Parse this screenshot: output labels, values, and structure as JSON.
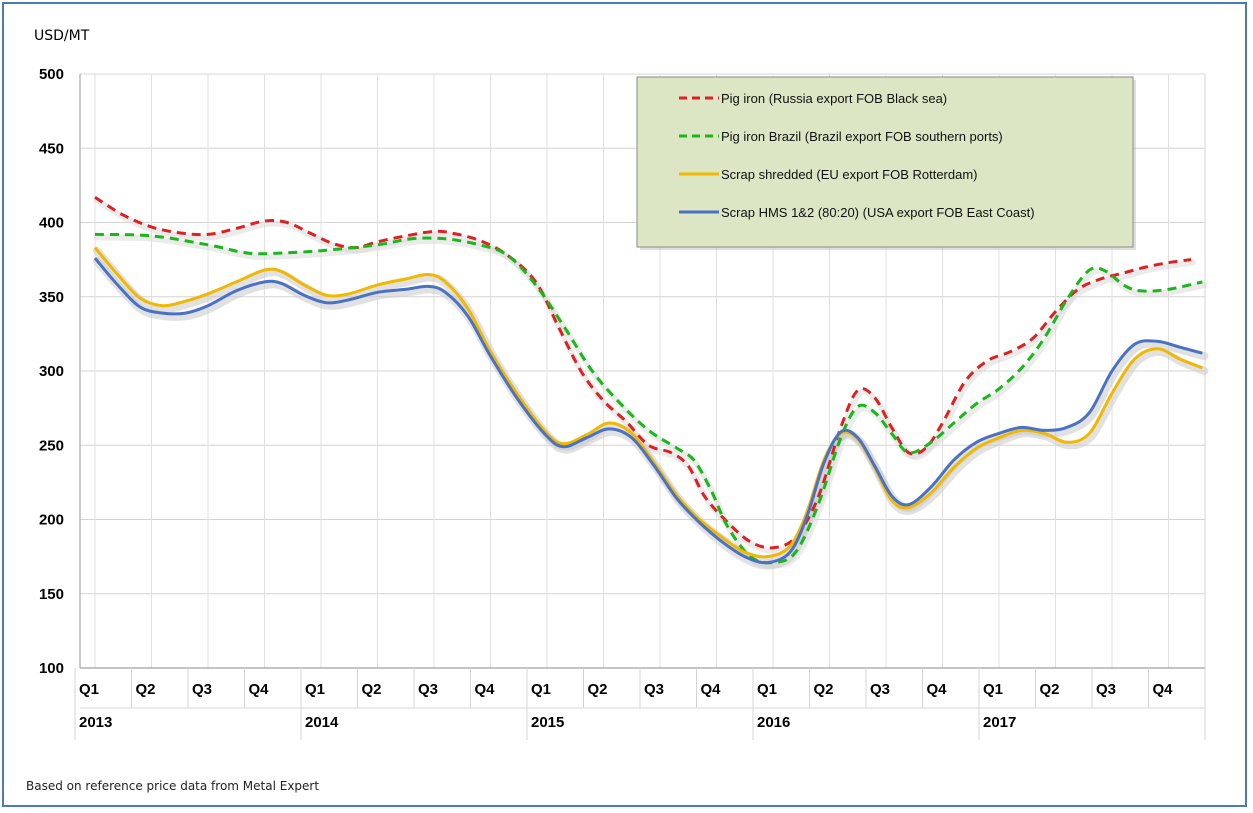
{
  "chart_data": {
    "type": "line",
    "ylabel": "USD/MT",
    "ylim": [
      100,
      500
    ],
    "yticks": [
      100,
      150,
      200,
      250,
      300,
      350,
      400,
      450,
      500
    ],
    "x_quarters": [
      "Q1",
      "Q2",
      "Q3",
      "Q4",
      "Q1",
      "Q2",
      "Q3",
      "Q4",
      "Q1",
      "Q2",
      "Q3",
      "Q4",
      "Q1",
      "Q2",
      "Q3",
      "Q4",
      "Q1",
      "Q2",
      "Q3",
      "Q4"
    ],
    "x_years": [
      {
        "label": "2013",
        "quarter_index": 0
      },
      {
        "label": "2014",
        "quarter_index": 4
      },
      {
        "label": "2015",
        "quarter_index": 8
      },
      {
        "label": "2016",
        "quarter_index": 12
      },
      {
        "label": "2017",
        "quarter_index": 16
      }
    ],
    "x_range": [
      0,
      19.6
    ],
    "grid": true,
    "legend_position": "top-right",
    "note": "Based on reference price data from Metal Expert",
    "series": [
      {
        "name": "Pig iron (Russia export FOB Black sea)",
        "color": "#e02020",
        "style": "dashed",
        "points": [
          [
            0,
            417
          ],
          [
            0.5,
            405
          ],
          [
            1,
            397
          ],
          [
            1.5,
            393
          ],
          [
            2,
            392
          ],
          [
            2.5,
            396
          ],
          [
            3,
            401
          ],
          [
            3.4,
            400
          ],
          [
            3.8,
            393
          ],
          [
            4.2,
            386
          ],
          [
            4.6,
            383
          ],
          [
            5,
            387
          ],
          [
            5.5,
            391
          ],
          [
            6,
            394
          ],
          [
            6.3,
            393
          ],
          [
            6.8,
            388
          ],
          [
            7.3,
            378
          ],
          [
            7.8,
            360
          ],
          [
            8.2,
            330
          ],
          [
            8.6,
            300
          ],
          [
            9,
            280
          ],
          [
            9.4,
            266
          ],
          [
            9.8,
            250
          ],
          [
            10.2,
            245
          ],
          [
            10.5,
            236
          ],
          [
            10.8,
            215
          ],
          [
            11.2,
            198
          ],
          [
            11.6,
            185
          ],
          [
            12,
            181
          ],
          [
            12.4,
            188
          ],
          [
            12.8,
            215
          ],
          [
            13.2,
            262
          ],
          [
            13.5,
            287
          ],
          [
            13.8,
            282
          ],
          [
            14.1,
            262
          ],
          [
            14.4,
            245
          ],
          [
            14.7,
            248
          ],
          [
            15,
            265
          ],
          [
            15.4,
            293
          ],
          [
            15.8,
            307
          ],
          [
            16.2,
            313
          ],
          [
            16.6,
            322
          ],
          [
            17,
            340
          ],
          [
            17.4,
            355
          ],
          [
            17.8,
            362
          ],
          [
            18.2,
            366
          ],
          [
            18.6,
            370
          ],
          [
            19,
            373
          ],
          [
            19.4,
            375
          ]
        ]
      },
      {
        "name": "Pig iron Brazil (Brazil export FOB southern ports)",
        "color": "#18b818",
        "style": "dashed",
        "points": [
          [
            0,
            392
          ],
          [
            1,
            391
          ],
          [
            2,
            385
          ],
          [
            2.6,
            380
          ],
          [
            3,
            379
          ],
          [
            4,
            381
          ],
          [
            5,
            385
          ],
          [
            5.6,
            389
          ],
          [
            6.2,
            389
          ],
          [
            6.8,
            385
          ],
          [
            7.3,
            378
          ],
          [
            7.8,
            358
          ],
          [
            8.3,
            330
          ],
          [
            8.8,
            300
          ],
          [
            9.3,
            278
          ],
          [
            9.8,
            260
          ],
          [
            10.3,
            248
          ],
          [
            10.6,
            240
          ],
          [
            10.9,
            220
          ],
          [
            11.2,
            195
          ],
          [
            11.6,
            175
          ],
          [
            12,
            171
          ],
          [
            12.4,
            178
          ],
          [
            12.8,
            210
          ],
          [
            13.2,
            255
          ],
          [
            13.5,
            276
          ],
          [
            13.8,
            272
          ],
          [
            14.1,
            258
          ],
          [
            14.4,
            245
          ],
          [
            14.8,
            252
          ],
          [
            15.2,
            265
          ],
          [
            15.6,
            278
          ],
          [
            16,
            288
          ],
          [
            16.4,
            302
          ],
          [
            16.8,
            322
          ],
          [
            17.2,
            348
          ],
          [
            17.6,
            368
          ],
          [
            17.9,
            367
          ],
          [
            18.2,
            358
          ],
          [
            18.5,
            354
          ],
          [
            19,
            355
          ],
          [
            19.6,
            360
          ]
        ]
      },
      {
        "name": "Scrap shredded (EU export FOB Rotterdam)",
        "color": "#f0b800",
        "style": "solid",
        "points": [
          [
            0,
            383
          ],
          [
            0.4,
            365
          ],
          [
            0.8,
            349
          ],
          [
            1.2,
            344
          ],
          [
            1.6,
            347
          ],
          [
            2,
            352
          ],
          [
            2.5,
            360
          ],
          [
            3,
            368
          ],
          [
            3.3,
            367
          ],
          [
            3.7,
            358
          ],
          [
            4.1,
            351
          ],
          [
            4.5,
            352
          ],
          [
            5,
            358
          ],
          [
            5.5,
            362
          ],
          [
            5.9,
            365
          ],
          [
            6.2,
            360
          ],
          [
            6.6,
            342
          ],
          [
            7,
            313
          ],
          [
            7.5,
            283
          ],
          [
            8,
            258
          ],
          [
            8.3,
            251
          ],
          [
            8.7,
            257
          ],
          [
            9.1,
            265
          ],
          [
            9.5,
            258
          ],
          [
            9.9,
            238
          ],
          [
            10.3,
            216
          ],
          [
            10.7,
            200
          ],
          [
            11.1,
            188
          ],
          [
            11.5,
            178
          ],
          [
            11.9,
            175
          ],
          [
            12.3,
            182
          ],
          [
            12.6,
            205
          ],
          [
            12.9,
            240
          ],
          [
            13.2,
            258
          ],
          [
            13.5,
            254
          ],
          [
            13.8,
            235
          ],
          [
            14.1,
            213
          ],
          [
            14.4,
            208
          ],
          [
            14.8,
            218
          ],
          [
            15.2,
            235
          ],
          [
            15.6,
            248
          ],
          [
            16,
            255
          ],
          [
            16.4,
            260
          ],
          [
            16.8,
            258
          ],
          [
            17.2,
            252
          ],
          [
            17.6,
            258
          ],
          [
            18,
            285
          ],
          [
            18.4,
            308
          ],
          [
            18.8,
            315
          ],
          [
            19.2,
            308
          ],
          [
            19.6,
            302
          ]
        ]
      },
      {
        "name": "Scrap HMS 1&2 (80:20) (USA export FOB East Coast)",
        "color": "#4a72c4",
        "style": "solid",
        "points": [
          [
            0,
            376
          ],
          [
            0.4,
            358
          ],
          [
            0.8,
            343
          ],
          [
            1.2,
            339
          ],
          [
            1.6,
            339
          ],
          [
            2,
            344
          ],
          [
            2.5,
            354
          ],
          [
            3,
            360
          ],
          [
            3.3,
            359
          ],
          [
            3.7,
            351
          ],
          [
            4.1,
            346
          ],
          [
            4.5,
            348
          ],
          [
            5,
            353
          ],
          [
            5.5,
            355
          ],
          [
            5.9,
            357
          ],
          [
            6.2,
            353
          ],
          [
            6.6,
            337
          ],
          [
            7,
            310
          ],
          [
            7.5,
            280
          ],
          [
            8,
            256
          ],
          [
            8.3,
            249
          ],
          [
            8.7,
            255
          ],
          [
            9.1,
            261
          ],
          [
            9.5,
            255
          ],
          [
            9.9,
            236
          ],
          [
            10.3,
            214
          ],
          [
            10.7,
            198
          ],
          [
            11.1,
            185
          ],
          [
            11.5,
            175
          ],
          [
            11.9,
            171
          ],
          [
            12.3,
            178
          ],
          [
            12.6,
            202
          ],
          [
            12.9,
            238
          ],
          [
            13.2,
            259
          ],
          [
            13.5,
            255
          ],
          [
            13.8,
            236
          ],
          [
            14.1,
            216
          ],
          [
            14.4,
            210
          ],
          [
            14.8,
            222
          ],
          [
            15.2,
            240
          ],
          [
            15.6,
            252
          ],
          [
            16,
            258
          ],
          [
            16.4,
            262
          ],
          [
            16.8,
            260
          ],
          [
            17.2,
            262
          ],
          [
            17.6,
            272
          ],
          [
            18,
            300
          ],
          [
            18.4,
            318
          ],
          [
            18.8,
            320
          ],
          [
            19.2,
            316
          ],
          [
            19.6,
            312
          ]
        ]
      }
    ]
  }
}
